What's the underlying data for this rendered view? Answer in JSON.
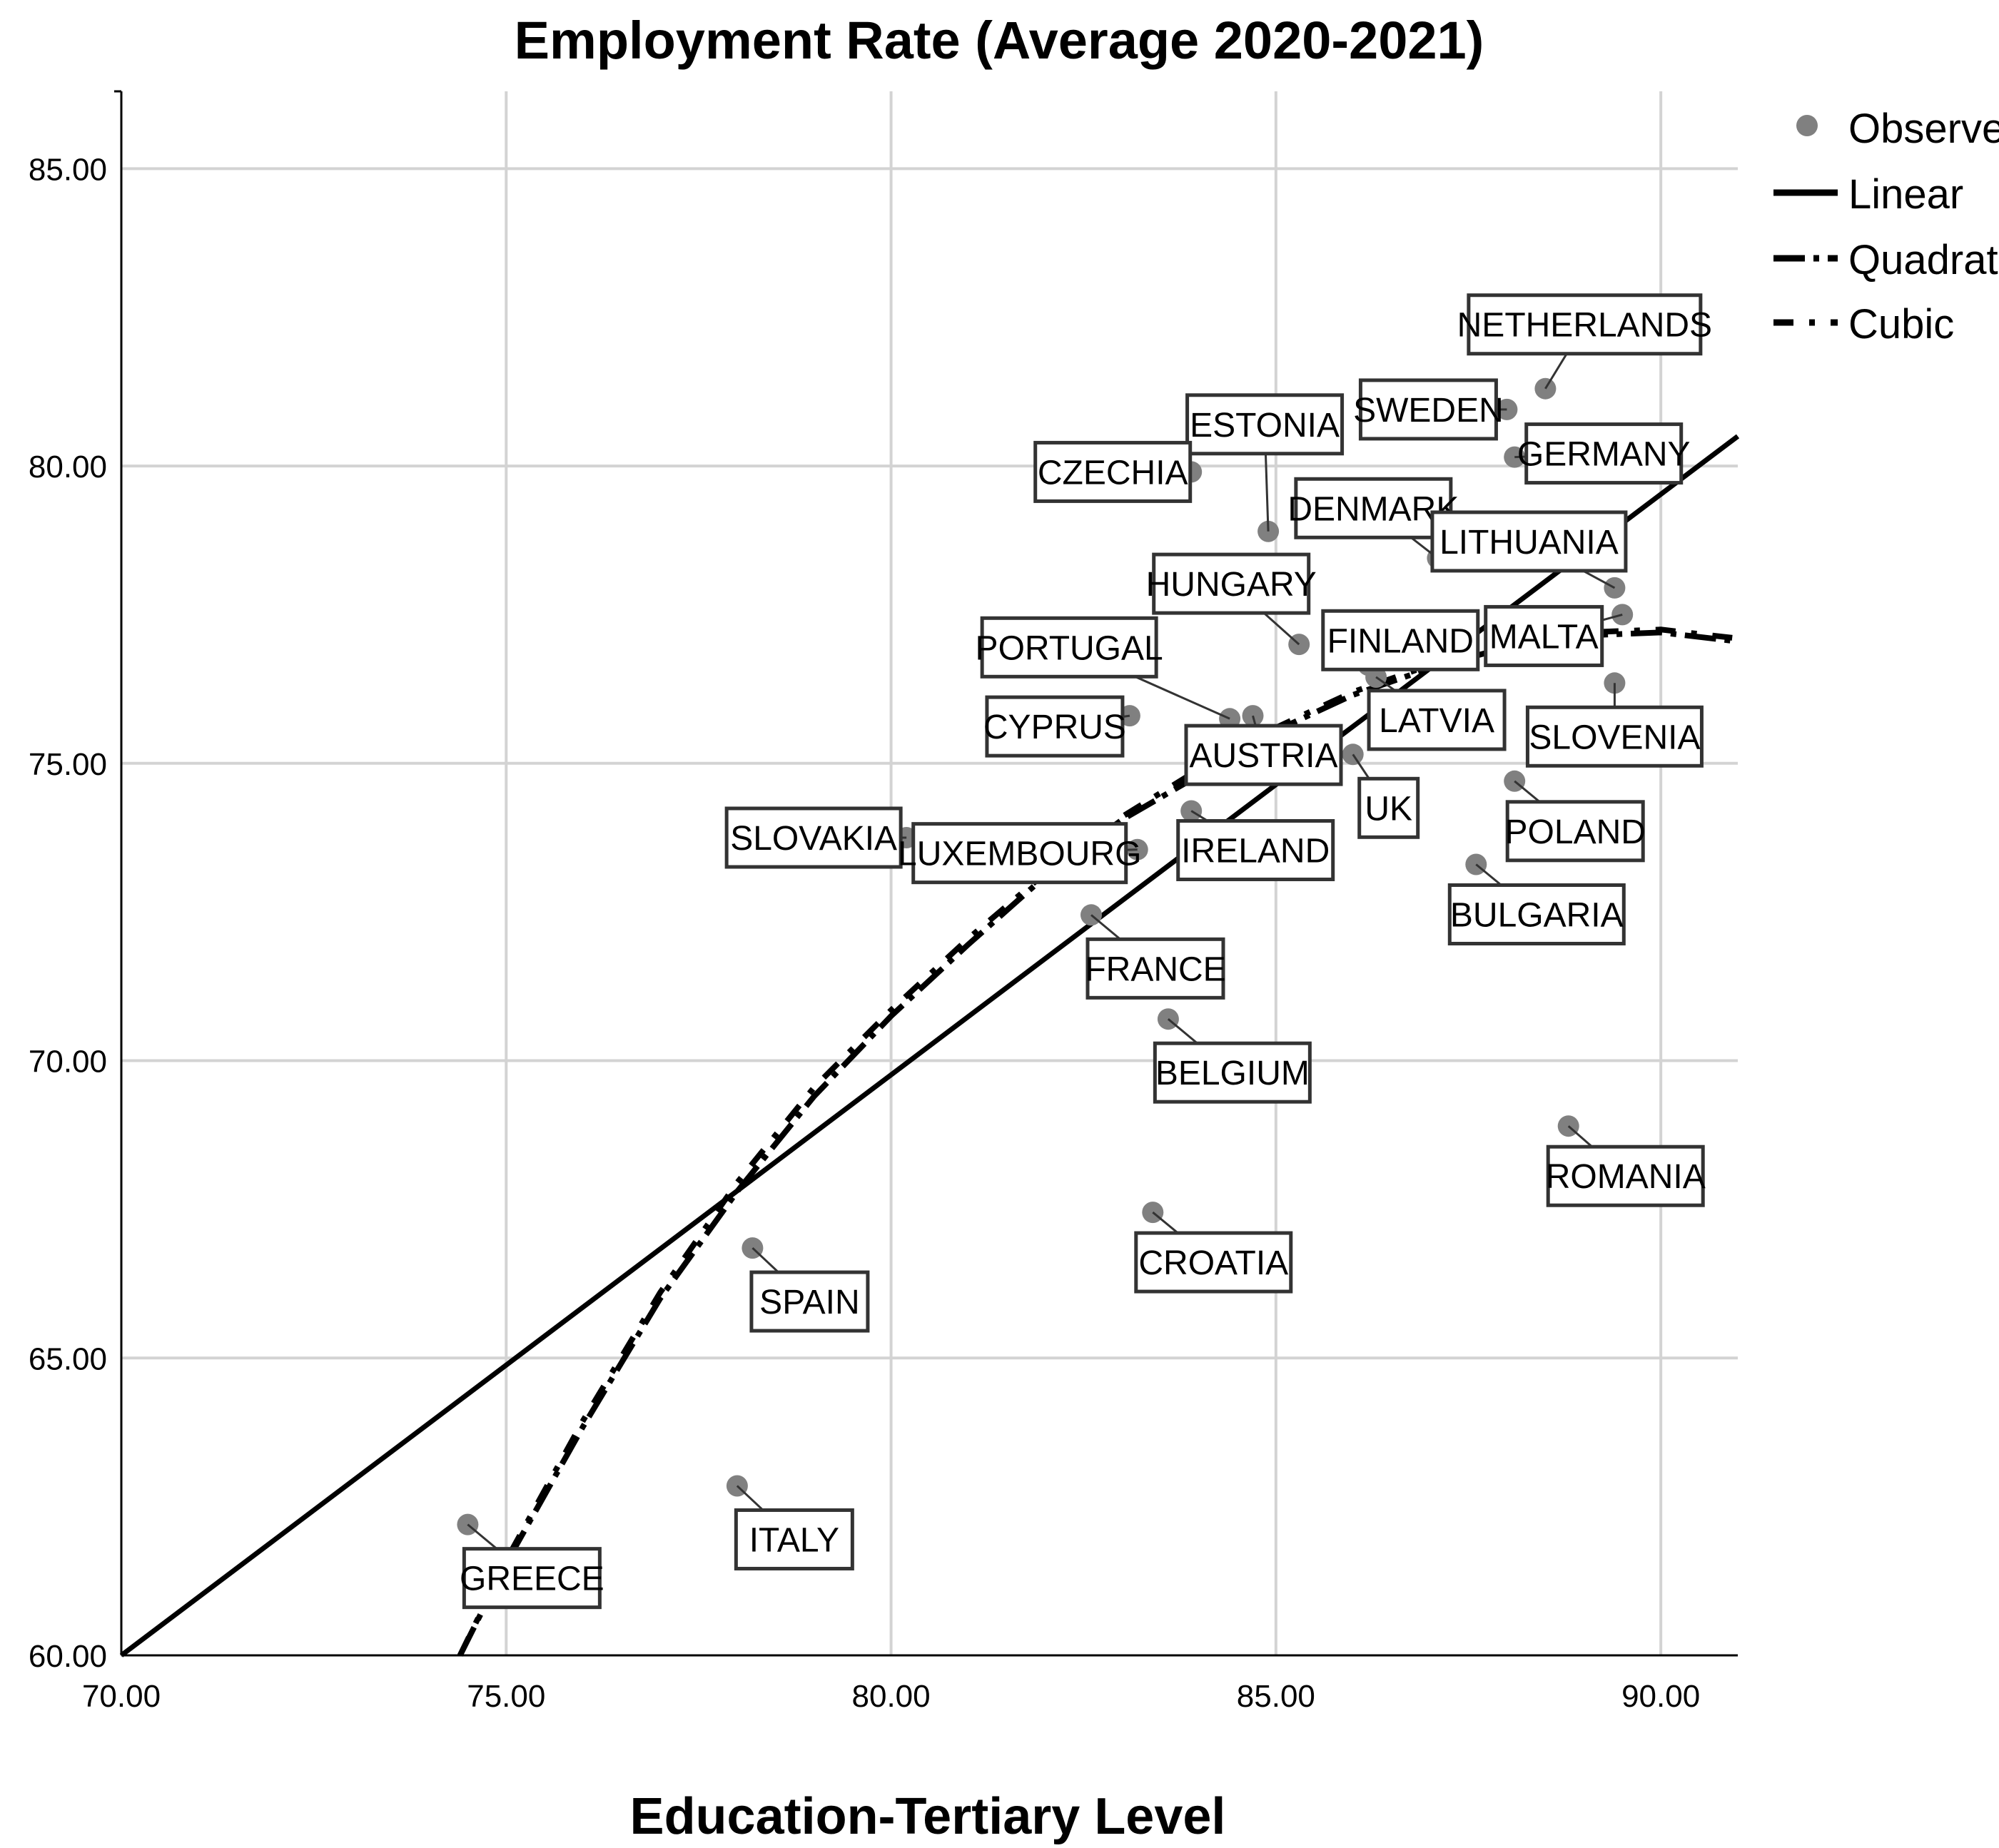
{
  "chart_data": {
    "type": "scatter",
    "title": "Employment Rate (Average 2020-2021)",
    "xlabel": "Education-Tertiary Level",
    "ylabel": "",
    "xlim": [
      70,
      91
    ],
    "ylim": [
      60,
      86.3
    ],
    "xticks": [
      "70.00",
      "75.00",
      "80.00",
      "85.00",
      "90.00"
    ],
    "yticks": [
      "60.00",
      "65.00",
      "70.00",
      "75.00",
      "80.00",
      "85.00"
    ],
    "grid": true,
    "legend_position": "top-right",
    "legend": [
      {
        "key": "observed",
        "label": "Observed"
      },
      {
        "key": "linear",
        "label": "Linear"
      },
      {
        "key": "quadratic",
        "label": "Quadratic"
      },
      {
        "key": "cubic",
        "label": "Cubic"
      }
    ],
    "observed": [
      {
        "label": "NETHERLANDS",
        "x": 88.5,
        "y": 81.3
      },
      {
        "label": "SWEDEN",
        "x": 88.0,
        "y": 80.95
      },
      {
        "label": "GERMANY",
        "x": 88.1,
        "y": 80.15
      },
      {
        "label": "ESTONIA",
        "x": 84.9,
        "y": 78.9
      },
      {
        "label": "CZECHIA",
        "x": 83.9,
        "y": 79.9
      },
      {
        "label": "DENMARK",
        "x": 87.1,
        "y": 78.45
      },
      {
        "label": "LITHUANIA",
        "x": 89.4,
        "y": 77.95
      },
      {
        "label": "MALTA",
        "x": 89.5,
        "y": 77.5
      },
      {
        "label": "HUNGARY",
        "x": 85.3,
        "y": 77.0
      },
      {
        "label": "FINLAND",
        "x": 86.2,
        "y": 76.65
      },
      {
        "label": "LATVIA",
        "x": 86.3,
        "y": 76.45
      },
      {
        "label": "SLOVENIA",
        "x": 89.4,
        "y": 76.35
      },
      {
        "label": "PORTUGAL",
        "x": 84.4,
        "y": 75.75
      },
      {
        "label": "AUSTRIA",
        "x": 84.7,
        "y": 75.8
      },
      {
        "label": "CYPRUS",
        "x": 83.1,
        "y": 75.8
      },
      {
        "label": "UK",
        "x": 86.0,
        "y": 75.15
      },
      {
        "label": "POLAND",
        "x": 88.1,
        "y": 74.7
      },
      {
        "label": "IRELAND",
        "x": 83.9,
        "y": 74.2
      },
      {
        "label": "SLOVAKIA",
        "x": 80.2,
        "y": 73.75
      },
      {
        "label": "LUXEMBOURG",
        "x": 83.2,
        "y": 73.55
      },
      {
        "label": "BULGARIA",
        "x": 87.6,
        "y": 73.3
      },
      {
        "label": "FRANCE",
        "x": 82.6,
        "y": 72.45
      },
      {
        "label": "BELGIUM",
        "x": 83.6,
        "y": 70.7
      },
      {
        "label": "ROMANIA",
        "x": 88.8,
        "y": 68.9
      },
      {
        "label": "CROATIA",
        "x": 83.4,
        "y": 67.45
      },
      {
        "label": "SPAIN",
        "x": 78.2,
        "y": 66.85
      },
      {
        "label": "ITALY",
        "x": 78.0,
        "y": 62.85
      },
      {
        "label": "GREECE",
        "x": 74.5,
        "y": 62.2
      }
    ],
    "fits": {
      "linear": {
        "x": [
          70,
          91
        ],
        "y": [
          60.0,
          80.5
        ]
      },
      "quadratic": {
        "x": [
          74.4,
          75.0,
          76.0,
          77.0,
          78.0,
          79.0,
          80.0,
          81.0,
          82.0,
          83.0,
          84.0,
          85.0,
          86.0,
          87.0,
          88.0,
          89.0,
          90.0,
          91.0
        ],
        "y": [
          60.0,
          61.55,
          63.85,
          66.0,
          67.8,
          69.4,
          70.75,
          71.95,
          73.1,
          74.05,
          74.8,
          75.55,
          76.15,
          76.6,
          76.95,
          77.15,
          77.2,
          77.05
        ]
      },
      "cubic": {
        "x": [
          74.4,
          75.0,
          76.0,
          77.0,
          78.0,
          79.0,
          80.0,
          81.0,
          82.0,
          83.0,
          84.0,
          85.0,
          86.0,
          87.0,
          88.0,
          89.0,
          90.0,
          91.0
        ],
        "y": [
          60.0,
          61.6,
          63.95,
          66.1,
          67.95,
          69.55,
          70.85,
          72.05,
          73.15,
          74.1,
          74.9,
          75.6,
          76.2,
          76.65,
          77.0,
          77.2,
          77.25,
          77.1
        ]
      }
    }
  }
}
